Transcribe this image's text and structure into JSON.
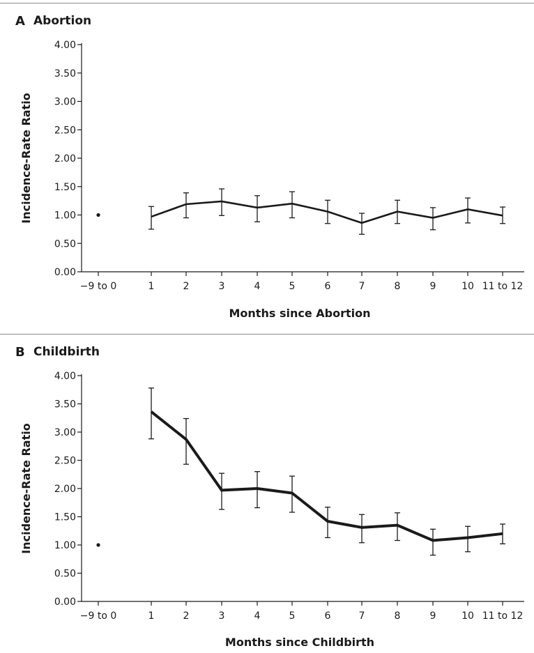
{
  "chart_data": [
    {
      "type": "line",
      "panel_letter": "A",
      "title": "Abortion",
      "xlabel": "Months since Abortion",
      "ylabel": "Incidence-Rate Ratio",
      "categories": [
        "−9 to 0",
        "1",
        "2",
        "3",
        "4",
        "5",
        "6",
        "7",
        "8",
        "9",
        "10",
        "11 to 12"
      ],
      "y_ticks": [
        "0.00",
        "0.50",
        "1.00",
        "1.50",
        "2.00",
        "2.50",
        "3.00",
        "3.50",
        "4.00"
      ],
      "ylim": [
        0,
        4
      ],
      "reference": {
        "category": "−9 to 0",
        "value": 1.0
      },
      "series": [
        {
          "values": [
            null,
            0.97,
            1.19,
            1.24,
            1.13,
            1.2,
            1.06,
            0.86,
            1.06,
            0.95,
            1.1,
            0.99
          ],
          "ci_low": [
            null,
            0.75,
            0.95,
            0.99,
            0.88,
            0.95,
            0.85,
            0.66,
            0.85,
            0.74,
            0.86,
            0.85
          ],
          "ci_high": [
            null,
            1.15,
            1.39,
            1.46,
            1.34,
            1.41,
            1.26,
            1.03,
            1.26,
            1.13,
            1.3,
            1.14
          ]
        }
      ],
      "grid": false,
      "line_width": "thin"
    },
    {
      "type": "line",
      "panel_letter": "B",
      "title": "Childbirth",
      "xlabel": "Months since Childbirth",
      "ylabel": "Incidence-Rate Ratio",
      "categories": [
        "−9 to 0",
        "1",
        "2",
        "3",
        "4",
        "5",
        "6",
        "7",
        "8",
        "9",
        "10",
        "11 to 12"
      ],
      "y_ticks": [
        "0.00",
        "0.50",
        "1.00",
        "1.50",
        "2.00",
        "2.50",
        "3.00",
        "3.50",
        "4.00"
      ],
      "ylim": [
        0,
        4
      ],
      "reference": {
        "category": "−9 to 0",
        "value": 1.0
      },
      "series": [
        {
          "values": [
            null,
            3.36,
            2.87,
            1.97,
            2.0,
            1.92,
            1.42,
            1.31,
            1.35,
            1.08,
            1.13,
            1.2
          ],
          "ci_low": [
            null,
            2.88,
            2.43,
            1.63,
            1.66,
            1.58,
            1.13,
            1.04,
            1.08,
            0.82,
            0.88,
            1.02
          ],
          "ci_high": [
            null,
            3.78,
            3.24,
            2.27,
            2.3,
            2.22,
            1.67,
            1.54,
            1.57,
            1.28,
            1.33,
            1.37
          ]
        }
      ],
      "grid": false,
      "line_width": "thick"
    }
  ]
}
